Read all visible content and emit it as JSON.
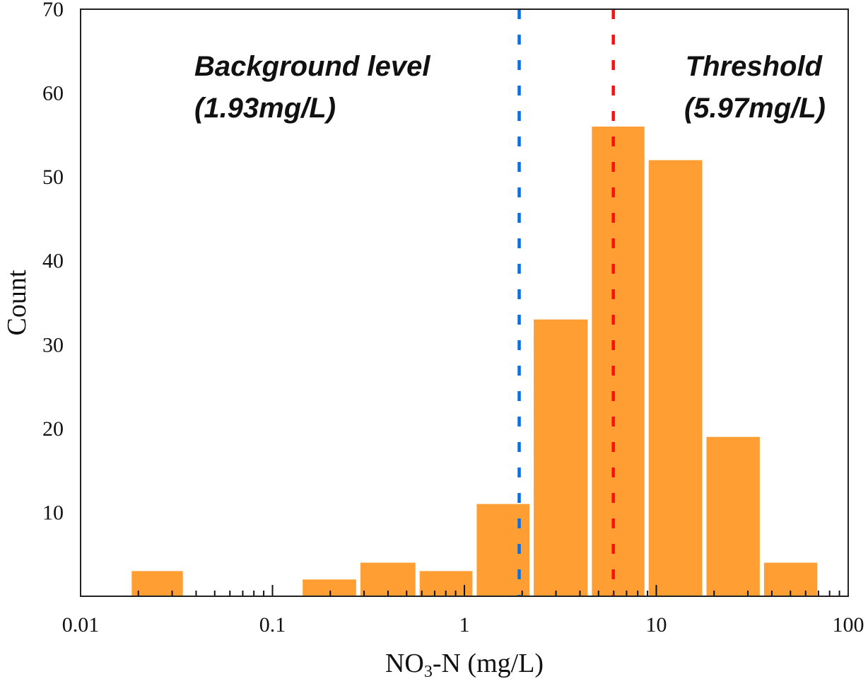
{
  "chart_data": {
    "type": "bar",
    "title": "",
    "xlabel": "NO3-N (mg/L)",
    "xlabel_parts": {
      "pre": "NO",
      "sub": "3",
      "post": "-N (mg/L)"
    },
    "ylabel": "Count",
    "xscale": "log",
    "xlim": [
      0.01,
      100
    ],
    "ylim": [
      0,
      70
    ],
    "grid": false,
    "x_ticks": [
      0.01,
      0.1,
      1,
      10,
      100
    ],
    "x_tick_labels": [
      "0.01",
      "0.1",
      "1",
      "10",
      "100"
    ],
    "y_ticks": [
      10,
      20,
      30,
      40,
      50,
      60,
      70
    ],
    "y_tick_labels": [
      "10",
      "20",
      "30",
      "40",
      "50",
      "60",
      "70"
    ],
    "bins": [
      {
        "x0": 0.018,
        "x1": 0.035,
        "count": 3
      },
      {
        "x0": 0.14,
        "x1": 0.28,
        "count": 2
      },
      {
        "x0": 0.28,
        "x1": 0.57,
        "count": 4
      },
      {
        "x0": 0.57,
        "x1": 1.13,
        "count": 3
      },
      {
        "x0": 1.13,
        "x1": 2.24,
        "count": 11
      },
      {
        "x0": 2.24,
        "x1": 4.5,
        "count": 33
      },
      {
        "x0": 4.5,
        "x1": 8.9,
        "count": 56
      },
      {
        "x0": 8.9,
        "x1": 17.8,
        "count": 52
      },
      {
        "x0": 17.8,
        "x1": 35.5,
        "count": 19
      },
      {
        "x0": 35.5,
        "x1": 70.8,
        "count": 4
      }
    ],
    "bar_color": "#FF9E33",
    "reference_lines": [
      {
        "name": "background-level",
        "x": 1.93,
        "color": "#0A6FE0",
        "style": "dashed",
        "label_line1": "Background level",
        "label_line2": "(1.93mg/L)"
      },
      {
        "name": "threshold",
        "x": 5.97,
        "color": "#FF1010",
        "style": "dashed",
        "label_line1": "Threshold",
        "label_line2": "(5.97mg/L)"
      }
    ]
  }
}
